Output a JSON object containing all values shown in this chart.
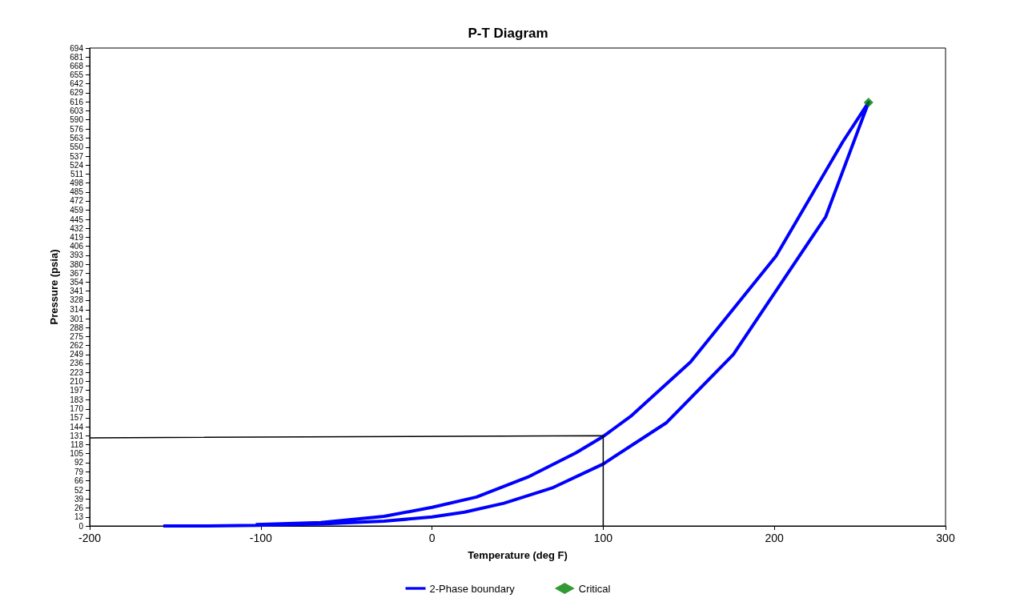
{
  "chart_data": {
    "type": "line",
    "title": "P-T Diagram",
    "xlabel": "Temperature (deg F)",
    "ylabel": "Pressure (psia)",
    "xlim": [
      -200,
      300
    ],
    "xticks": [
      -200,
      -100,
      0,
      100,
      200,
      300
    ],
    "ylim": [
      0,
      694
    ],
    "yticks": [
      0,
      13,
      26,
      39,
      52,
      66,
      79,
      92,
      105,
      118,
      131,
      144,
      157,
      170,
      183,
      197,
      210,
      223,
      236,
      249,
      262,
      275,
      288,
      301,
      314,
      328,
      341,
      354,
      367,
      380,
      393,
      406,
      419,
      432,
      445,
      459,
      472,
      485,
      498,
      511,
      524,
      537,
      550,
      563,
      576,
      590,
      603,
      616,
      629,
      642,
      655,
      668,
      681,
      694
    ],
    "grid": false,
    "legend": "bottom",
    "series": [
      {
        "name": "2-Phase boundary",
        "type": "line",
        "color": "#0000ff",
        "marker": "none",
        "x": [
          -157,
          -131,
          -103,
          -65,
          -28,
          0,
          19,
          42,
          70,
          100,
          137,
          176,
          230,
          255,
          240,
          201,
          151,
          116,
          100,
          84,
          56,
          26,
          0,
          -28,
          -65,
          -103
        ],
        "values": [
          0,
          0,
          1,
          3,
          7,
          13,
          20,
          33,
          55,
          90,
          150,
          249,
          449,
          615,
          558,
          392,
          238,
          159,
          130,
          106,
          71,
          42,
          27,
          14,
          5,
          2
        ]
      },
      {
        "name": "Critical",
        "type": "scatter",
        "color": "#008000",
        "marker": "diamond",
        "x": [
          255
        ],
        "values": [
          615
        ]
      },
      {
        "type": "line",
        "color": "#000000",
        "marker": "none",
        "x": [
          -200,
          100,
          100
        ],
        "values": [
          128,
          131,
          0
        ]
      }
    ]
  }
}
